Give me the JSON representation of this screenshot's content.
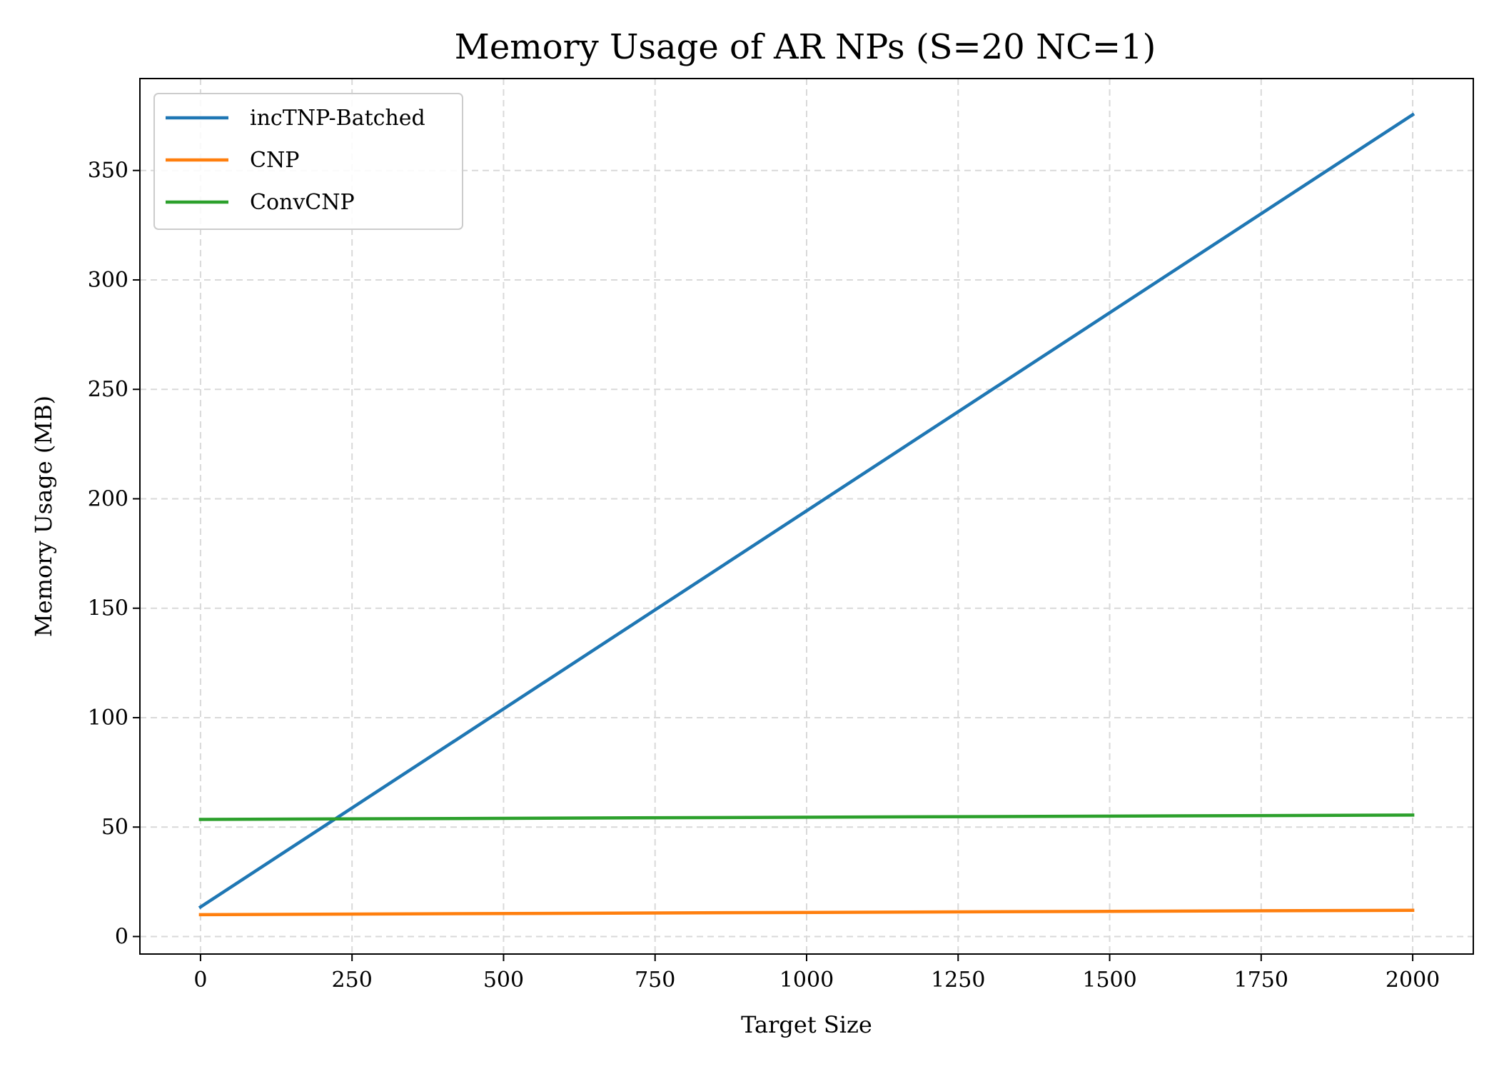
{
  "chart_data": {
    "type": "line",
    "title": "Memory Usage of AR NPs (S=20 NC=1)",
    "xlabel": "Target Size",
    "ylabel": "Memory Usage (MB)",
    "xlim": [
      -100,
      2100
    ],
    "ylim": [
      -8,
      392
    ],
    "xticks": [
      0,
      250,
      500,
      750,
      1000,
      1250,
      1500,
      1750,
      2000
    ],
    "yticks": [
      0,
      50,
      100,
      150,
      200,
      250,
      300,
      350
    ],
    "grid": true,
    "legend_position": "top-left",
    "x": [
      0,
      2000
    ],
    "series": [
      {
        "name": "incTNP-Batched",
        "color": "#1f77b4",
        "values": [
          13.5,
          375.5
        ]
      },
      {
        "name": "CNP",
        "color": "#ff7f0e",
        "values": [
          10,
          12
        ]
      },
      {
        "name": "ConvCNP",
        "color": "#2ca02c",
        "values": [
          53.5,
          55.5
        ]
      }
    ]
  }
}
